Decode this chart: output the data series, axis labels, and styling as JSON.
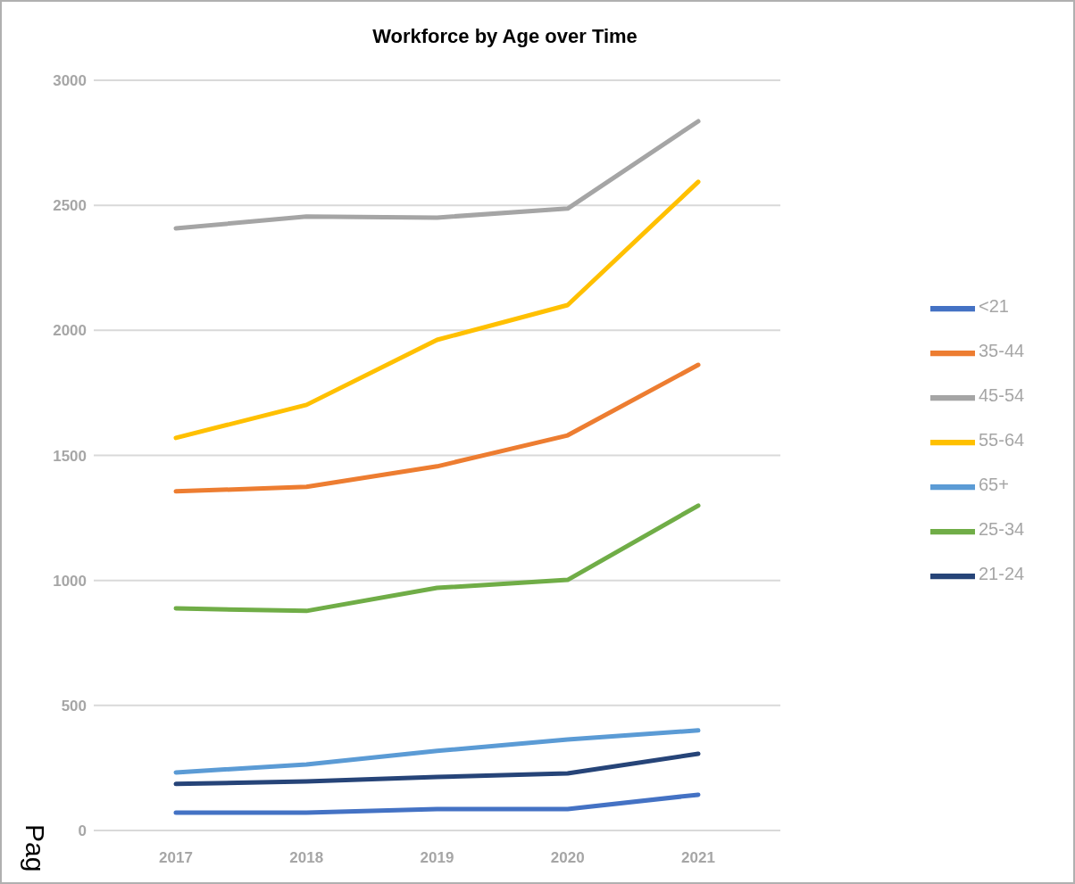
{
  "chart_data": {
    "type": "line",
    "title": "Workforce by Age over Time",
    "categories": [
      "2017",
      "2018",
      "2019",
      "2020",
      "2021"
    ],
    "series": [
      {
        "name": "<21",
        "color": "#4472c4",
        "values": [
          71,
          71,
          86,
          86,
          143
        ]
      },
      {
        "name": "35-44",
        "color": "#ed7d31",
        "values": [
          1356,
          1374,
          1456,
          1580,
          1862
        ]
      },
      {
        "name": "45-54",
        "color": "#a5a5a5",
        "values": [
          2408,
          2455,
          2451,
          2487,
          2836
        ]
      },
      {
        "name": "55-64",
        "color": "#ffc000",
        "values": [
          1570,
          1702,
          1962,
          2101,
          2594
        ]
      },
      {
        "name": "65+",
        "color": "#5b9bd5",
        "values": [
          232,
          264,
          318,
          364,
          400
        ]
      },
      {
        "name": "25-34",
        "color": "#70ad47",
        "values": [
          888,
          878,
          970,
          1002,
          1299
        ]
      },
      {
        "name": "21-24",
        "color": "#264478",
        "values": [
          186,
          196,
          214,
          228,
          307
        ]
      }
    ],
    "ylim": [
      0,
      3000
    ],
    "yticks": [
      0,
      500,
      1000,
      1500,
      2000,
      2500,
      3000
    ],
    "grid": "y",
    "legend": "right",
    "marker": "none",
    "line_style": "solid",
    "annotations": [
      "Pag"
    ]
  }
}
